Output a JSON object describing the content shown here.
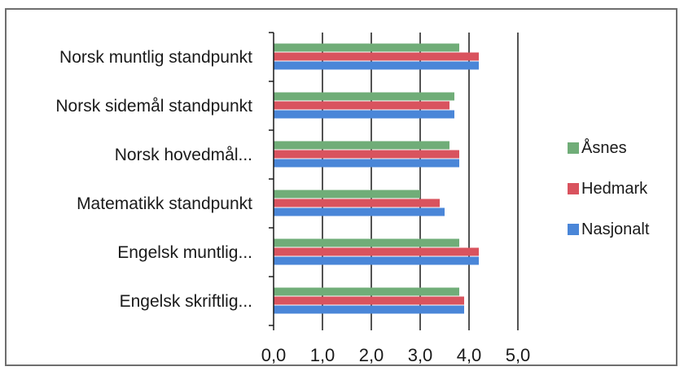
{
  "chart_data": {
    "type": "bar",
    "orientation": "horizontal",
    "categories": [
      "Norsk muntlig standpunkt",
      "Norsk sidemål standpunkt",
      "Norsk hovedmål...",
      "Matematikk standpunkt",
      "Engelsk muntlig...",
      "Engelsk skriftlig..."
    ],
    "series": [
      {
        "name": "Åsnes",
        "color": "#70ad78",
        "values": [
          3.8,
          3.7,
          3.6,
          3.0,
          3.8,
          3.8
        ]
      },
      {
        "name": "Hedmark",
        "color": "#d9535e",
        "values": [
          4.2,
          3.6,
          3.8,
          3.4,
          4.2,
          3.9
        ]
      },
      {
        "name": "Nasjonalt",
        "color": "#4a86d8",
        "values": [
          4.2,
          3.7,
          3.8,
          3.5,
          4.2,
          3.9
        ]
      }
    ],
    "x_ticks": [
      "0,0",
      "1,0",
      "2,0",
      "3,0",
      "4,0",
      "5,0"
    ],
    "xlim": [
      0,
      5
    ],
    "grid": true,
    "legend_position": "right"
  }
}
